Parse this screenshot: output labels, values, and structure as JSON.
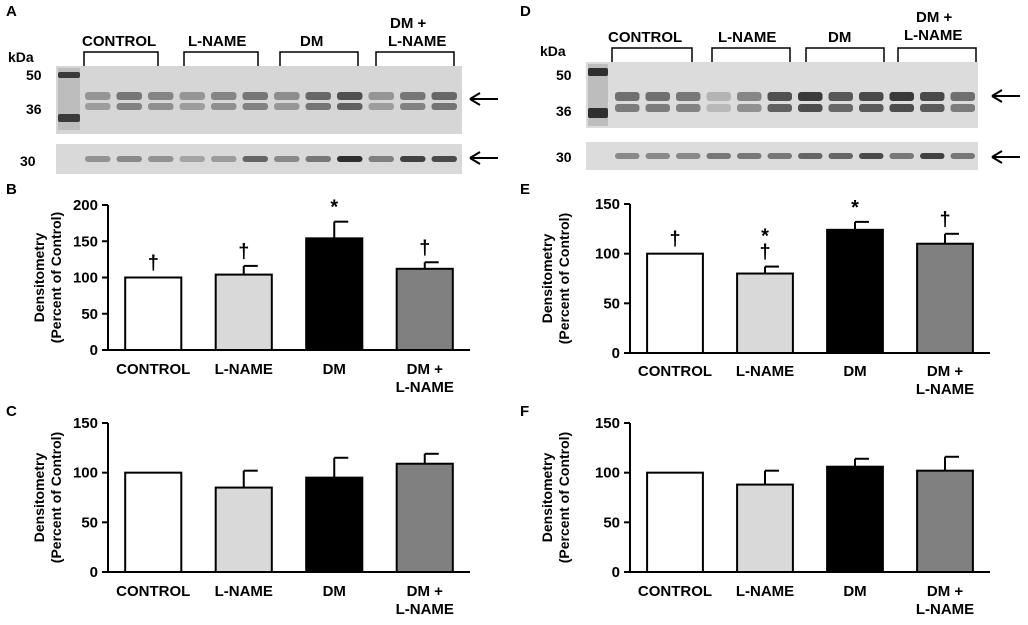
{
  "panels": {
    "A": "A",
    "B": "B",
    "C": "C",
    "D": "D",
    "E": "E",
    "F": "F"
  },
  "blot_labels": {
    "kda": "kDa",
    "groups": [
      "CONTROL",
      "L-NAME",
      "DM",
      "DM +",
      "L-NAME"
    ],
    "left_markers": [
      "50",
      "36",
      "30"
    ],
    "right_markers": [
      "50",
      "36",
      "30"
    ]
  },
  "blots": {
    "left_upper": {
      "lane_intensity": [
        0.35,
        0.55,
        0.45,
        0.35,
        0.45,
        0.55,
        0.4,
        0.65,
        0.8,
        0.35,
        0.55,
        0.65
      ]
    },
    "left_lower": {
      "lane_intensity": [
        0.3,
        0.35,
        0.3,
        0.2,
        0.25,
        0.55,
        0.35,
        0.45,
        0.85,
        0.4,
        0.75,
        0.7
      ]
    },
    "right_upper": {
      "lane_intensity": [
        0.6,
        0.6,
        0.55,
        0.15,
        0.45,
        0.8,
        0.95,
        0.75,
        0.85,
        0.95,
        0.85,
        0.6
      ]
    },
    "right_lower": {
      "lane_intensity": [
        0.35,
        0.35,
        0.35,
        0.45,
        0.45,
        0.45,
        0.55,
        0.55,
        0.7,
        0.45,
        0.75,
        0.45
      ]
    }
  },
  "colors": {
    "control": "#ffffff",
    "lname": "#d9d9d9",
    "dm": "#000000",
    "dm_lname": "#808080"
  },
  "chart_data": [
    {
      "panel": "B",
      "type": "bar",
      "categories": [
        "CONTROL",
        "L-NAME",
        "DM",
        "DM +\nL-NAME"
      ],
      "values": [
        100,
        104,
        154,
        112
      ],
      "errors": [
        0,
        12,
        23,
        9
      ],
      "annotations": [
        "†",
        "†",
        "*",
        "†"
      ],
      "ylabel": "Densitometry\n(Percent of Control)",
      "ylim": [
        0,
        200
      ],
      "yticks": [
        0,
        50,
        100,
        150,
        200
      ]
    },
    {
      "panel": "C",
      "type": "bar",
      "categories": [
        "CONTROL",
        "L-NAME",
        "DM",
        "DM +\nL-NAME"
      ],
      "values": [
        100,
        85,
        95,
        109
      ],
      "errors": [
        0,
        17,
        20,
        10
      ],
      "annotations": [
        "",
        "",
        "",
        ""
      ],
      "ylabel": "Densitometry\n(Percent of Control)",
      "ylim": [
        0,
        150
      ],
      "yticks": [
        0,
        50,
        100,
        150
      ]
    },
    {
      "panel": "E",
      "type": "bar",
      "categories": [
        "CONTROL",
        "L-NAME",
        "DM",
        "DM +\nL-NAME"
      ],
      "values": [
        100,
        80,
        124,
        110
      ],
      "errors": [
        0,
        7,
        8,
        10
      ],
      "annotations": [
        "†",
        "*\n†",
        "*",
        "†"
      ],
      "ylabel": "Densitometry\n(Percent of Control)",
      "ylim": [
        0,
        150
      ],
      "yticks": [
        0,
        50,
        100,
        150
      ]
    },
    {
      "panel": "F",
      "type": "bar",
      "categories": [
        "CONTROL",
        "L-NAME",
        "DM",
        "DM +\nL-NAME"
      ],
      "values": [
        100,
        88,
        106,
        102
      ],
      "errors": [
        0,
        14,
        8,
        14
      ],
      "annotations": [
        "",
        "",
        "",
        ""
      ],
      "ylabel": "Densitometry\n(Percent of Control)",
      "ylim": [
        0,
        150
      ],
      "yticks": [
        0,
        50,
        100,
        150
      ]
    }
  ]
}
